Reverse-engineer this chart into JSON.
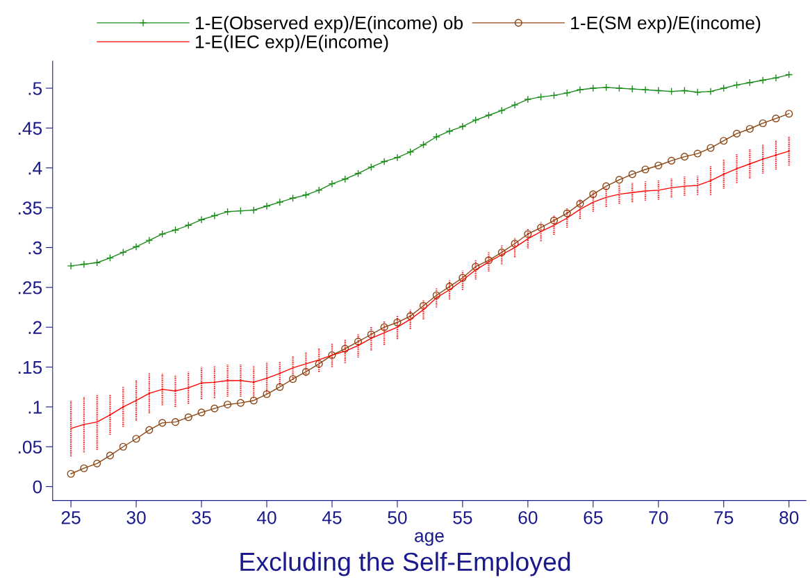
{
  "chart_data": {
    "type": "line",
    "title": "Excluding the Self-Employed",
    "xlabel": "age",
    "x": [
      25,
      26,
      27,
      28,
      29,
      30,
      31,
      32,
      33,
      34,
      35,
      36,
      37,
      38,
      39,
      40,
      41,
      42,
      43,
      44,
      45,
      46,
      47,
      48,
      49,
      50,
      51,
      52,
      53,
      54,
      55,
      56,
      57,
      58,
      59,
      60,
      61,
      62,
      63,
      64,
      65,
      66,
      67,
      68,
      69,
      70,
      71,
      72,
      73,
      74,
      75,
      76,
      77,
      78,
      79,
      80
    ],
    "series": [
      {
        "name": "1-E(Observed exp)/E(income) ob",
        "color": "#1a8c1a",
        "marker": "cross",
        "values": [
          0.277,
          0.279,
          0.281,
          0.287,
          0.294,
          0.301,
          0.309,
          0.317,
          0.322,
          0.328,
          0.335,
          0.34,
          0.345,
          0.346,
          0.347,
          0.352,
          0.357,
          0.362,
          0.366,
          0.372,
          0.38,
          0.386,
          0.393,
          0.401,
          0.408,
          0.413,
          0.42,
          0.429,
          0.439,
          0.446,
          0.452,
          0.46,
          0.466,
          0.472,
          0.479,
          0.486,
          0.489,
          0.491,
          0.494,
          0.498,
          0.5,
          0.501,
          0.5,
          0.499,
          0.498,
          0.497,
          0.496,
          0.497,
          0.495,
          0.496,
          0.5,
          0.504,
          0.507,
          0.51,
          0.513,
          0.517
        ]
      },
      {
        "name": "1-E(SM exp)/E(income)",
        "color": "#8b4513",
        "marker": "circle",
        "values": [
          0.016,
          0.023,
          0.029,
          0.039,
          0.05,
          0.06,
          0.071,
          0.08,
          0.081,
          0.087,
          0.093,
          0.098,
          0.103,
          0.105,
          0.108,
          0.116,
          0.125,
          0.135,
          0.144,
          0.154,
          0.165,
          0.173,
          0.182,
          0.191,
          0.2,
          0.206,
          0.214,
          0.227,
          0.24,
          0.251,
          0.262,
          0.276,
          0.284,
          0.294,
          0.305,
          0.317,
          0.325,
          0.334,
          0.343,
          0.355,
          0.367,
          0.377,
          0.385,
          0.392,
          0.398,
          0.403,
          0.409,
          0.414,
          0.418,
          0.425,
          0.434,
          0.443,
          0.449,
          0.456,
          0.462,
          0.468
        ]
      },
      {
        "name": "1-E(IEC exp)/E(income)",
        "color": "#ff0000",
        "marker": "none",
        "values": [
          0.073,
          0.078,
          0.081,
          0.09,
          0.1,
          0.108,
          0.117,
          0.122,
          0.12,
          0.124,
          0.13,
          0.131,
          0.133,
          0.133,
          0.131,
          0.136,
          0.142,
          0.149,
          0.154,
          0.159,
          0.165,
          0.17,
          0.177,
          0.186,
          0.193,
          0.2,
          0.21,
          0.222,
          0.237,
          0.247,
          0.259,
          0.272,
          0.282,
          0.291,
          0.3,
          0.311,
          0.32,
          0.328,
          0.337,
          0.348,
          0.357,
          0.363,
          0.367,
          0.369,
          0.371,
          0.372,
          0.375,
          0.377,
          0.378,
          0.384,
          0.392,
          0.399,
          0.405,
          0.411,
          0.416,
          0.421
        ],
        "errors": [
          0.035,
          0.035,
          0.035,
          0.025,
          0.025,
          0.025,
          0.025,
          0.02,
          0.02,
          0.02,
          0.02,
          0.02,
          0.02,
          0.02,
          0.02,
          0.02,
          0.015,
          0.015,
          0.015,
          0.015,
          0.015,
          0.015,
          0.015,
          0.015,
          0.015,
          0.015,
          0.012,
          0.012,
          0.012,
          0.012,
          0.012,
          0.012,
          0.012,
          0.012,
          0.012,
          0.012,
          0.012,
          0.012,
          0.012,
          0.012,
          0.012,
          0.012,
          0.012,
          0.012,
          0.012,
          0.012,
          0.012,
          0.012,
          0.012,
          0.018,
          0.018,
          0.018,
          0.018,
          0.018,
          0.018,
          0.018
        ]
      }
    ],
    "xlim": [
      23.6,
      81.3
    ],
    "xticks": [
      25,
      30,
      35,
      40,
      45,
      50,
      55,
      60,
      65,
      70,
      75,
      80
    ],
    "ylim": [
      -0.0175,
      0.534
    ],
    "yticks": [
      0,
      {
        "value": 0.05,
        "label": ".05"
      },
      {
        "value": 0.1,
        "label": ".1"
      },
      {
        "value": 0.15,
        "label": ".15"
      },
      {
        "value": 0.2,
        "label": ".2"
      },
      {
        "value": 0.25,
        "label": ".25"
      },
      {
        "value": 0.3,
        "label": ".3"
      },
      {
        "value": 0.35,
        "label": ".35"
      },
      {
        "value": 0.4,
        "label": ".4"
      },
      {
        "value": 0.45,
        "label": ".45"
      },
      {
        "value": 0.5,
        "label": ".5"
      }
    ],
    "grid": false,
    "legend": "top"
  }
}
